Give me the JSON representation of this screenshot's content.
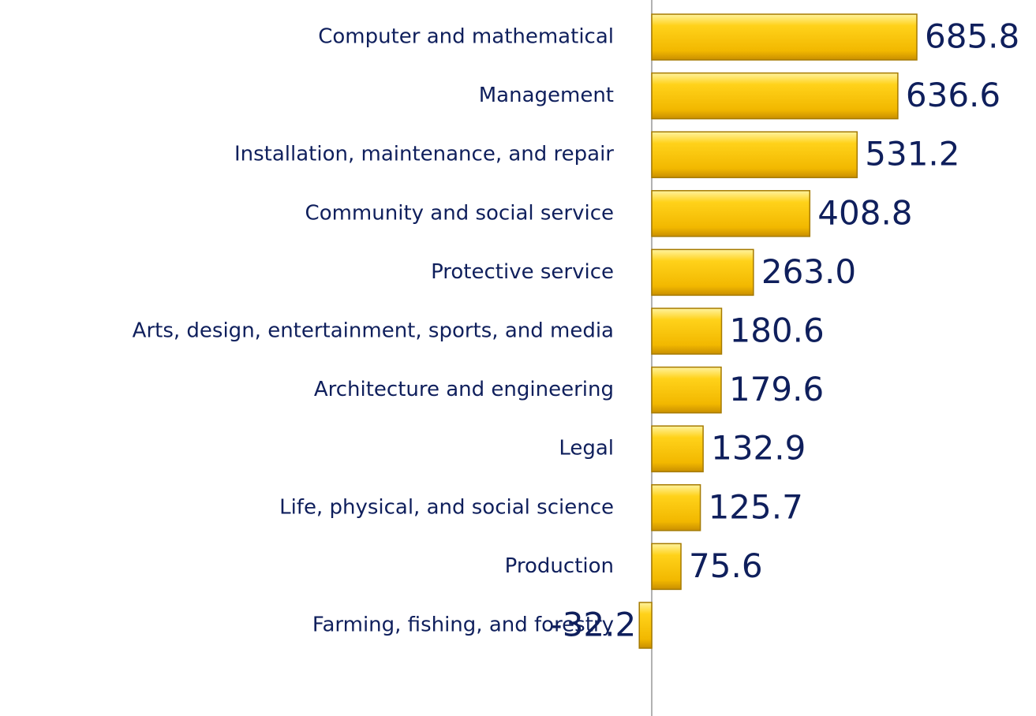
{
  "chart_data": {
    "type": "bar",
    "orientation": "horizontal",
    "categories": [
      "Computer and mathematical",
      "Management",
      "Installation, maintenance, and repair",
      "Community and social service",
      "Protective service",
      "Arts, design, entertainment, sports, and media",
      "Architecture and engineering",
      "Legal",
      "Life, physical, and social science",
      "Production",
      "Farming, fishing, and forestry"
    ],
    "values": [
      685.8,
      636.6,
      531.2,
      408.8,
      263.0,
      180.6,
      179.6,
      132.9,
      125.7,
      75.6,
      -32.2
    ],
    "value_labels": [
      "685.8",
      "636.6",
      "531.2",
      "408.8",
      "263.0",
      "180.6",
      "179.6",
      "132.9",
      "125.7",
      "75.6",
      "-32.2"
    ],
    "color": "#f7c600"
  }
}
